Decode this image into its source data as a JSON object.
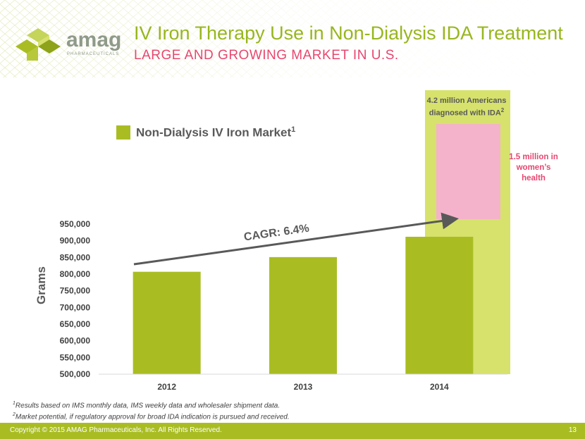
{
  "slide": {
    "title": "IV Iron Therapy Use in Non-Dialysis IDA Treatment",
    "subtitle": "LARGE AND GROWING MARKET IN U.S.",
    "logo_text": "amag",
    "logo_subtext": "PHARMACEUTICALS",
    "copyright": "Copyright © 2015 AMAG Pharmaceuticals, Inc. All Rights Reserved.",
    "page_number": "13",
    "footnote1_sup": "1",
    "footnote1_text": "Results based on IMS monthly data, IMS weekly data and wholesaler shipment data.",
    "footnote2_sup": "2",
    "footnote2_text": "Market potential, if regulatory approval for broad IDA indication is pursued and received.",
    "market_note_text": "4.2 million Americans diagnosed with IDA",
    "market_note_sup": "2",
    "womens_note": "1.5 million in women’s health",
    "colors": {
      "brand_green": "#a9bd23",
      "title_green": "#97b61e",
      "light_green": "#d6e26c",
      "pink": "#f5b2cb",
      "pink_text": "#e8466f"
    }
  },
  "chart_data": {
    "type": "bar",
    "categories": [
      "2012",
      "2013",
      "2014"
    ],
    "series": [
      {
        "name": "Non-Dialysis IV Iron Market",
        "values": [
          807000,
          851000,
          912000
        ]
      }
    ],
    "legend_label": "Non-Dialysis IV Iron Market",
    "legend_sup": "1",
    "ylabel": "Grams",
    "xlabel": "",
    "ylim": [
      500000,
      950000
    ],
    "yticks": [
      500000,
      550000,
      600000,
      650000,
      700000,
      750000,
      800000,
      850000,
      900000,
      950000
    ],
    "ytick_labels": [
      "500,000",
      "550,000",
      "600,000",
      "650,000",
      "700,000",
      "750,000",
      "800,000",
      "850,000",
      "900,000",
      "950,000"
    ],
    "annotation": "CAGR: 6.4%",
    "grid": false,
    "legend_position": "top-left"
  }
}
